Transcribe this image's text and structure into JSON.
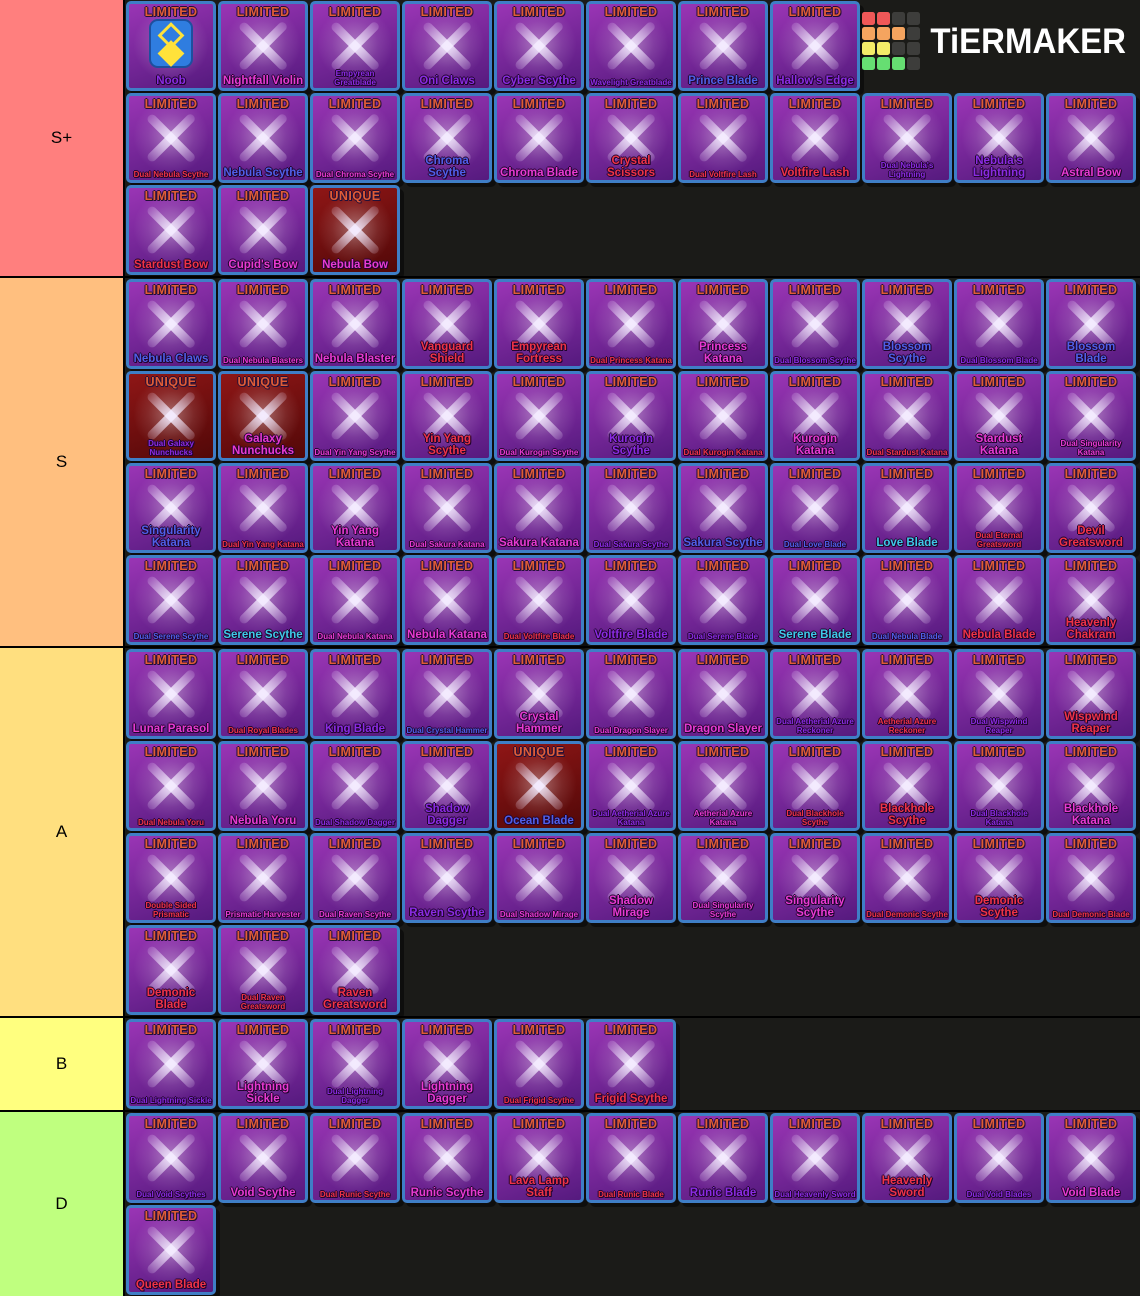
{
  "site": {
    "logo_text": "TiERMAKER",
    "logo_grid_colors": [
      "#ef5858",
      "#ef5858",
      "#3d3d3b",
      "#3d3d3b",
      "#f5a45f",
      "#f5a45f",
      "#f5a45f",
      "#3d3d3b",
      "#f3ec68",
      "#f3ec68",
      "#3d3d3b",
      "#3d3d3b",
      "#66de72",
      "#66de72",
      "#66de72",
      "#3d3d3b"
    ]
  },
  "palette": {
    "card_border": "#3f7ec6",
    "card_bg1": "#9a35b5",
    "card_bg2": "#551a7e",
    "unique_bg1": "#8f1616",
    "unique_bg2": "#520808",
    "badge": "#e05c36",
    "row_bg": "#1b1b18",
    "name_colors": {
      "red": "#ef3347",
      "magenta": "#e83ad2",
      "purple": "#8a2be2",
      "blue": "#4f5fe8",
      "cyan": "#3ec9e8"
    }
  },
  "tiers": [
    {
      "label": "S+",
      "color": "#ff7f7e",
      "rows": [
        [
          {
            "name": "Noob",
            "badge": "LIMITED",
            "c": "purple",
            "art": "noob"
          },
          {
            "name": "Nightfall Violin",
            "badge": "LIMITED",
            "c": "magenta"
          },
          {
            "name": "Empyrean Greatblade",
            "badge": "LIMITED",
            "c": "purple"
          },
          {
            "name": "Oni Claws",
            "badge": "LIMITED",
            "c": "purple"
          },
          {
            "name": "Cyber Scythe",
            "badge": "LIMITED",
            "c": "purple"
          },
          {
            "name": "Wavelight Greatblade",
            "badge": "LIMITED",
            "c": "purple"
          },
          {
            "name": "Prince Blade",
            "badge": "LIMITED",
            "c": "blue"
          },
          {
            "name": "Hallow's Edge",
            "badge": "LIMITED",
            "c": "purple"
          }
        ],
        [
          {
            "name": "Dual Nebula Scythe",
            "badge": "LIMITED",
            "c": "red"
          },
          {
            "name": "Nebula Scythe",
            "badge": "LIMITED",
            "c": "blue"
          },
          {
            "name": "Dual Chroma Scythe",
            "badge": "LIMITED",
            "c": "magenta"
          },
          {
            "name": "Chroma Scythe",
            "badge": "LIMITED",
            "c": "blue"
          },
          {
            "name": "Chroma Blade",
            "badge": "LIMITED",
            "c": "magenta"
          },
          {
            "name": "Crystal Scissors",
            "badge": "LIMITED",
            "c": "red"
          },
          {
            "name": "Dual Voltfire Lash",
            "badge": "LIMITED",
            "c": "red"
          },
          {
            "name": "Voltfire Lash",
            "badge": "LIMITED",
            "c": "red"
          },
          {
            "name": "Dual Nebula's Lightning",
            "badge": "LIMITED",
            "c": "purple"
          },
          {
            "name": "Nebula's Lightning",
            "badge": "LIMITED",
            "c": "purple"
          },
          {
            "name": "Astral Bow",
            "badge": "LIMITED",
            "c": "magenta"
          }
        ],
        [
          {
            "name": "Stardust Bow",
            "badge": "LIMITED",
            "c": "red"
          },
          {
            "name": "Cupid's Bow",
            "badge": "LIMITED",
            "c": "magenta"
          },
          {
            "name": "Nebula Bow",
            "badge": "UNIQUE",
            "c": "magenta"
          }
        ]
      ]
    },
    {
      "label": "S",
      "color": "#ffbf7f",
      "rows": [
        [
          {
            "name": "Nebula Claws",
            "badge": "LIMITED",
            "c": "blue"
          },
          {
            "name": "Dual Nebula Blasters",
            "badge": "LIMITED",
            "c": "magenta"
          },
          {
            "name": "Nebula Blaster",
            "badge": "LIMITED",
            "c": "magenta"
          },
          {
            "name": "Vanguard Shield",
            "badge": "LIMITED",
            "c": "red"
          },
          {
            "name": "Empyrean Fortress",
            "badge": "LIMITED",
            "c": "red"
          },
          {
            "name": "Dual Princess Katana",
            "badge": "LIMITED",
            "c": "red"
          },
          {
            "name": "Princess Katana",
            "badge": "LIMITED",
            "c": "magenta"
          },
          {
            "name": "Dual Blossom Scythe",
            "badge": "LIMITED",
            "c": "purple"
          },
          {
            "name": "Blossom Scythe",
            "badge": "LIMITED",
            "c": "blue"
          },
          {
            "name": "Dual Blossom Blade",
            "badge": "LIMITED",
            "c": "purple"
          },
          {
            "name": "Blossom Blade",
            "badge": "LIMITED",
            "c": "blue"
          }
        ],
        [
          {
            "name": "Dual Galaxy Nunchucks",
            "badge": "UNIQUE",
            "c": "purple"
          },
          {
            "name": "Galaxy Nunchucks",
            "badge": "UNIQUE",
            "c": "magenta"
          },
          {
            "name": "Dual Yin Yang Scythe",
            "badge": "LIMITED",
            "c": "magenta"
          },
          {
            "name": "Yin Yang Scythe",
            "badge": "LIMITED",
            "c": "red"
          },
          {
            "name": "Dual Kurogin Scythe",
            "badge": "LIMITED",
            "c": "magenta"
          },
          {
            "name": "Kurogin Scythe",
            "badge": "LIMITED",
            "c": "purple"
          },
          {
            "name": "Dual Kurogin Katana",
            "badge": "LIMITED",
            "c": "red"
          },
          {
            "name": "Kurogin Katana",
            "badge": "LIMITED",
            "c": "magenta"
          },
          {
            "name": "Dual Stardust Katana",
            "badge": "LIMITED",
            "c": "red"
          },
          {
            "name": "Stardust Katana",
            "badge": "LIMITED",
            "c": "magenta"
          },
          {
            "name": "Dual Singularity Katana",
            "badge": "LIMITED",
            "c": "magenta"
          }
        ],
        [
          {
            "name": "Singularity Katana",
            "badge": "LIMITED",
            "c": "blue"
          },
          {
            "name": "Dual Yin Yang Katana",
            "badge": "LIMITED",
            "c": "red"
          },
          {
            "name": "Yin Yang Katana",
            "badge": "LIMITED",
            "c": "magenta"
          },
          {
            "name": "Dual Sakura Katana",
            "badge": "LIMITED",
            "c": "magenta"
          },
          {
            "name": "Sakura Katana",
            "badge": "LIMITED",
            "c": "magenta"
          },
          {
            "name": "Dual Sakura Scythe",
            "badge": "LIMITED",
            "c": "purple"
          },
          {
            "name": "Sakura Scythe",
            "badge": "LIMITED",
            "c": "blue"
          },
          {
            "name": "Dual Love Blade",
            "badge": "LIMITED",
            "c": "blue"
          },
          {
            "name": "Love Blade",
            "badge": "LIMITED",
            "c": "cyan"
          },
          {
            "name": "Dual Eternal Greatsword",
            "badge": "LIMITED",
            "c": "red"
          },
          {
            "name": "Devil Greatsword",
            "badge": "LIMITED",
            "c": "red"
          }
        ],
        [
          {
            "name": "Dual Serene Scythe",
            "badge": "LIMITED",
            "c": "blue"
          },
          {
            "name": "Serene Scythe",
            "badge": "LIMITED",
            "c": "cyan"
          },
          {
            "name": "Dual Nebula Katana",
            "badge": "LIMITED",
            "c": "magenta"
          },
          {
            "name": "Nebula Katana",
            "badge": "LIMITED",
            "c": "magenta"
          },
          {
            "name": "Dual Voltfire Blade",
            "badge": "LIMITED",
            "c": "red"
          },
          {
            "name": "Voltfire Blade",
            "badge": "LIMITED",
            "c": "purple"
          },
          {
            "name": "Dual Serene Blade",
            "badge": "LIMITED",
            "c": "purple"
          },
          {
            "name": "Serene Blade",
            "badge": "LIMITED",
            "c": "cyan"
          },
          {
            "name": "Dual Nebula Blade",
            "badge": "LIMITED",
            "c": "blue"
          },
          {
            "name": "Nebula Blade",
            "badge": "LIMITED",
            "c": "red"
          },
          {
            "name": "Heavenly Chakram",
            "badge": "LIMITED",
            "c": "red"
          }
        ]
      ]
    },
    {
      "label": "A",
      "color": "#ffdf7f",
      "rows": [
        [
          {
            "name": "Lunar Parasol",
            "badge": "LIMITED",
            "c": "magenta"
          },
          {
            "name": "Dual Royal Blades",
            "badge": "LIMITED",
            "c": "red"
          },
          {
            "name": "King Blade",
            "badge": "LIMITED",
            "c": "purple"
          },
          {
            "name": "Dual Crystal Hammer",
            "badge": "LIMITED",
            "c": "blue"
          },
          {
            "name": "Crystal Hammer",
            "badge": "LIMITED",
            "c": "magenta"
          },
          {
            "name": "Dual Dragon Slayer",
            "badge": "LIMITED",
            "c": "magenta"
          },
          {
            "name": "Dragon Slayer",
            "badge": "LIMITED",
            "c": "magenta"
          },
          {
            "name": "Dual Aetherial Azure Reckoner",
            "badge": "LIMITED",
            "c": "purple"
          },
          {
            "name": "Aetherial Azure Reckoner",
            "badge": "LIMITED",
            "c": "red"
          },
          {
            "name": "Dual Wispwind Reaper",
            "badge": "LIMITED",
            "c": "purple"
          },
          {
            "name": "Wispwind Reaper",
            "badge": "LIMITED",
            "c": "red"
          }
        ],
        [
          {
            "name": "Dual Nebula Yoru",
            "badge": "LIMITED",
            "c": "red"
          },
          {
            "name": "Nebula Yoru",
            "badge": "LIMITED",
            "c": "magenta"
          },
          {
            "name": "Dual Shadow Dagger",
            "badge": "LIMITED",
            "c": "purple"
          },
          {
            "name": "Shadow Dagger",
            "badge": "LIMITED",
            "c": "purple"
          },
          {
            "name": "Ocean Blade",
            "badge": "UNIQUE",
            "c": "blue"
          },
          {
            "name": "Dual Aetherial Azure Katana",
            "badge": "LIMITED",
            "c": "purple"
          },
          {
            "name": "Aetherial Azure Katana",
            "badge": "LIMITED",
            "c": "magenta"
          },
          {
            "name": "Dual Blackhole Scythe",
            "badge": "LIMITED",
            "c": "red"
          },
          {
            "name": "Blackhole Scythe",
            "badge": "LIMITED",
            "c": "red"
          },
          {
            "name": "Dual Blackhole Katana",
            "badge": "LIMITED",
            "c": "purple"
          },
          {
            "name": "Blackhole Katana",
            "badge": "LIMITED",
            "c": "magenta"
          }
        ],
        [
          {
            "name": "Double Sided Prismatic",
            "badge": "LIMITED",
            "c": "red"
          },
          {
            "name": "Prismatic Harvester",
            "badge": "LIMITED",
            "c": "magenta"
          },
          {
            "name": "Dual Raven Scythe",
            "badge": "LIMITED",
            "c": "magenta"
          },
          {
            "name": "Raven Scythe",
            "badge": "LIMITED",
            "c": "purple"
          },
          {
            "name": "Dual Shadow Mirage",
            "badge": "LIMITED",
            "c": "magenta"
          },
          {
            "name": "Shadow Mirage",
            "badge": "LIMITED",
            "c": "magenta"
          },
          {
            "name": "Dual Singularity Scythe",
            "badge": "LIMITED",
            "c": "magenta"
          },
          {
            "name": "Singularity Scythe",
            "badge": "LIMITED",
            "c": "magenta"
          },
          {
            "name": "Dual Demonic Scythe",
            "badge": "LIMITED",
            "c": "red"
          },
          {
            "name": "Demonic Scythe",
            "badge": "LIMITED",
            "c": "red"
          },
          {
            "name": "Dual Demonic Blade",
            "badge": "LIMITED",
            "c": "red"
          }
        ],
        [
          {
            "name": "Demonic Blade",
            "badge": "LIMITED",
            "c": "red"
          },
          {
            "name": "Dual Raven Greatsword",
            "badge": "LIMITED",
            "c": "red"
          },
          {
            "name": "Raven Greatsword",
            "badge": "LIMITED",
            "c": "red"
          }
        ]
      ]
    },
    {
      "label": "B",
      "color": "#ffff7f",
      "rows": [
        [
          {
            "name": "Dual Lightning Sickle",
            "badge": "LIMITED",
            "c": "purple"
          },
          {
            "name": "Lightning Sickle",
            "badge": "LIMITED",
            "c": "magenta"
          },
          {
            "name": "Dual Lightning Dagger",
            "badge": "LIMITED",
            "c": "purple"
          },
          {
            "name": "Lightning Dagger",
            "badge": "LIMITED",
            "c": "magenta"
          },
          {
            "name": "Dual Frigid Scythe",
            "badge": "LIMITED",
            "c": "red"
          },
          {
            "name": "Frigid Scythe",
            "badge": "LIMITED",
            "c": "red"
          }
        ]
      ]
    },
    {
      "label": "D",
      "color": "#bfff7f",
      "rows": [
        [
          {
            "name": "Dual Void Scythes",
            "badge": "LIMITED",
            "c": "purple"
          },
          {
            "name": "Void Scythe",
            "badge": "LIMITED",
            "c": "magenta"
          },
          {
            "name": "Dual Runic Scythe",
            "badge": "LIMITED",
            "c": "red"
          },
          {
            "name": "Runic Scythe",
            "badge": "LIMITED",
            "c": "magenta"
          },
          {
            "name": "Lava Lamp Staff",
            "badge": "LIMITED",
            "c": "red"
          },
          {
            "name": "Dual Runic Blade",
            "badge": "LIMITED",
            "c": "red"
          },
          {
            "name": "Runic Blade",
            "badge": "LIMITED",
            "c": "purple"
          },
          {
            "name": "Dual Heavenly Sword",
            "badge": "LIMITED",
            "c": "purple"
          },
          {
            "name": "Heavenly Sword",
            "badge": "LIMITED",
            "c": "red"
          },
          {
            "name": "Dual Void Blades",
            "badge": "LIMITED",
            "c": "purple"
          },
          {
            "name": "Void Blade",
            "badge": "LIMITED",
            "c": "magenta"
          }
        ],
        [
          {
            "name": "Queen Blade",
            "badge": "LIMITED",
            "c": "red"
          }
        ]
      ]
    }
  ]
}
